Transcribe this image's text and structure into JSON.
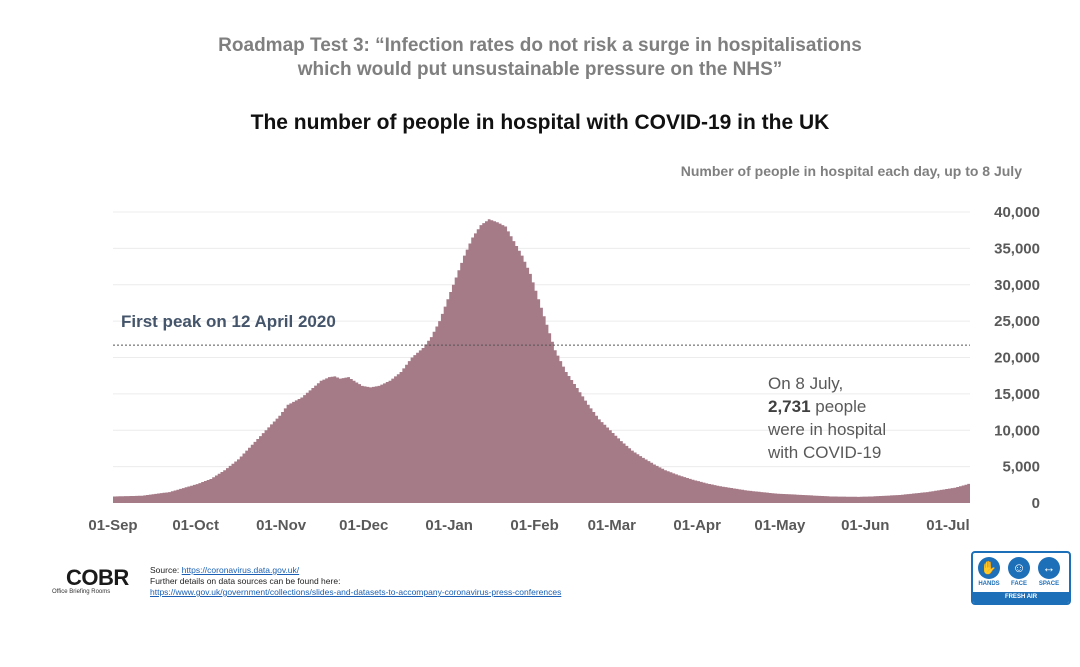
{
  "heading": {
    "line1": "Roadmap Test 3: “Infection rates do not risk a surge in hospitalisations",
    "line2": "which would put unsustainable pressure on the NHS”"
  },
  "chart_data": {
    "type": "area",
    "title": "The number of people in hospital with COVID-19 in the UK",
    "subtitle": "Number of people in hospital each day, up to 8 July",
    "xlabel": "",
    "ylabel": "",
    "x_start": "01-Sep",
    "x_end": "08-Jul",
    "x_days": 311,
    "ylim": [
      0,
      40000
    ],
    "y_ticks": [
      "0",
      "5,000",
      "10,000",
      "15,000",
      "20,000",
      "25,000",
      "30,000",
      "35,000",
      "40,000"
    ],
    "y_tick_values": [
      0,
      5000,
      10000,
      15000,
      20000,
      25000,
      30000,
      35000,
      40000
    ],
    "x_ticks": [
      {
        "label": "01-Sep",
        "day": 0
      },
      {
        "label": "01-Oct",
        "day": 30
      },
      {
        "label": "01-Nov",
        "day": 61
      },
      {
        "label": "01-Dec",
        "day": 91
      },
      {
        "label": "01-Jan",
        "day": 122
      },
      {
        "label": "01-Feb",
        "day": 153
      },
      {
        "label": "01-Mar",
        "day": 181
      },
      {
        "label": "01-Apr",
        "day": 212
      },
      {
        "label": "01-May",
        "day": 242
      },
      {
        "label": "01-Jun",
        "day": 273
      },
      {
        "label": "01-Jul",
        "day": 303
      }
    ],
    "series": [
      {
        "name": "People in hospital",
        "color": "#a67b88",
        "points": [
          [
            0,
            900
          ],
          [
            10,
            1000
          ],
          [
            20,
            1500
          ],
          [
            30,
            2600
          ],
          [
            35,
            3300
          ],
          [
            40,
            4500
          ],
          [
            45,
            6000
          ],
          [
            50,
            8000
          ],
          [
            55,
            10000
          ],
          [
            60,
            12000
          ],
          [
            63,
            13500
          ],
          [
            68,
            14500
          ],
          [
            72,
            15800
          ],
          [
            75,
            16800
          ],
          [
            78,
            17300
          ],
          [
            80,
            17400
          ],
          [
            82,
            17100
          ],
          [
            85,
            17300
          ],
          [
            87,
            16800
          ],
          [
            90,
            16100
          ],
          [
            93,
            15900
          ],
          [
            96,
            16100
          ],
          [
            100,
            16800
          ],
          [
            104,
            18000
          ],
          [
            108,
            20000
          ],
          [
            112,
            21300
          ],
          [
            115,
            22800
          ],
          [
            118,
            25000
          ],
          [
            121,
            28000
          ],
          [
            124,
            31000
          ],
          [
            127,
            34000
          ],
          [
            130,
            36500
          ],
          [
            133,
            38200
          ],
          [
            136,
            39000
          ],
          [
            139,
            38600
          ],
          [
            142,
            38000
          ],
          [
            145,
            36000
          ],
          [
            148,
            34000
          ],
          [
            151,
            31500
          ],
          [
            154,
            28000
          ],
          [
            157,
            24500
          ],
          [
            160,
            21000
          ],
          [
            164,
            18000
          ],
          [
            168,
            15800
          ],
          [
            172,
            13500
          ],
          [
            176,
            11500
          ],
          [
            180,
            10000
          ],
          [
            184,
            8500
          ],
          [
            188,
            7200
          ],
          [
            192,
            6200
          ],
          [
            196,
            5300
          ],
          [
            200,
            4500
          ],
          [
            205,
            3800
          ],
          [
            210,
            3200
          ],
          [
            215,
            2700
          ],
          [
            220,
            2300
          ],
          [
            225,
            2000
          ],
          [
            230,
            1700
          ],
          [
            235,
            1500
          ],
          [
            240,
            1300
          ],
          [
            245,
            1200
          ],
          [
            250,
            1100
          ],
          [
            255,
            1000
          ],
          [
            260,
            900
          ],
          [
            265,
            870
          ],
          [
            270,
            850
          ],
          [
            275,
            900
          ],
          [
            280,
            1000
          ],
          [
            285,
            1100
          ],
          [
            290,
            1300
          ],
          [
            295,
            1500
          ],
          [
            300,
            1800
          ],
          [
            305,
            2100
          ],
          [
            308,
            2400
          ],
          [
            311,
            2731
          ]
        ]
      }
    ],
    "reference_line": {
      "label": "First peak on 12 April 2020",
      "value": 21700
    },
    "annotation": {
      "line1": "On 8 July,",
      "value": "2,731",
      "line2_rest": " people",
      "line3": "were in hospital",
      "line4": "with COVID-19"
    },
    "grid": true,
    "legend": "none"
  },
  "footer": {
    "logo": "COBR",
    "logo_sub": "Office Briefing Rooms",
    "source_prefix": "Source: ",
    "source_link": "https://coronavirus.data.gov.uk/",
    "details_text": "Further details on data sources can be found here:",
    "details_link": "https://www.gov.uk/government/collections/slides-and-datasets-to-accompany-coronavirus-press-conferences"
  },
  "badge": {
    "hands": "HANDS",
    "face": "FACE",
    "space": "SPACE",
    "fresh_air": "FRESH AIR",
    "colors": {
      "primary": "#1d6fb8"
    }
  }
}
